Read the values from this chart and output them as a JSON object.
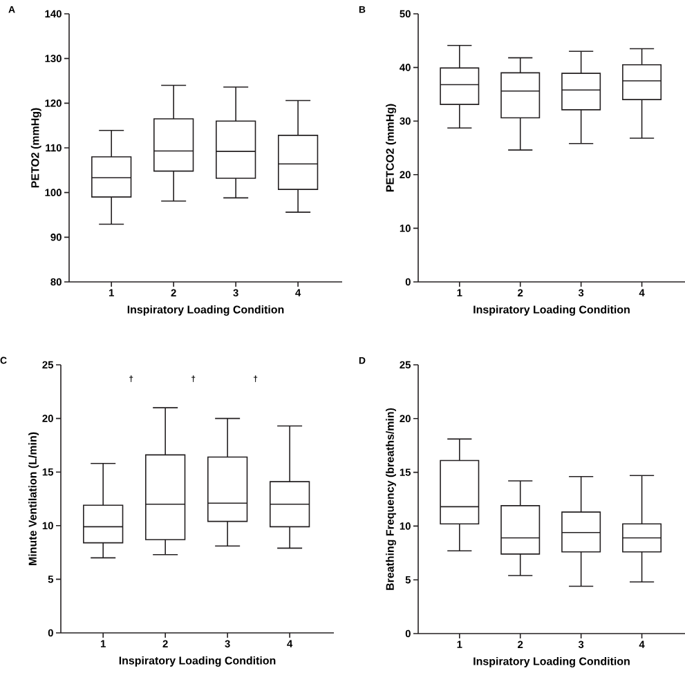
{
  "chart_data": [
    {
      "type": "box",
      "title": "A",
      "xlabel": "Inspiratory Loading Condition",
      "ylabel": "PETO2 (mmHg)",
      "categories": [
        "1",
        "2",
        "3",
        "4"
      ],
      "ylim": [
        80,
        140
      ],
      "yticks": [
        80,
        90,
        100,
        110,
        120,
        130,
        140
      ],
      "color": "#231f20",
      "boxes": [
        {
          "low": 92.9,
          "q1": 99.0,
          "median": 103.3,
          "q3": 108.0,
          "high": 113.9
        },
        {
          "low": 98.1,
          "q1": 104.8,
          "median": 109.3,
          "q3": 116.5,
          "high": 124.0
        },
        {
          "low": 98.8,
          "q1": 103.2,
          "median": 109.2,
          "q3": 116.0,
          "high": 123.6
        },
        {
          "low": 95.6,
          "q1": 100.7,
          "median": 106.4,
          "q3": 112.8,
          "high": 120.6
        }
      ]
    },
    {
      "type": "box",
      "title": "B",
      "xlabel": "Inspiratory Loading Condition",
      "ylabel": "PETCO2 (mmHg)",
      "categories": [
        "1",
        "2",
        "3",
        "4"
      ],
      "ylim": [
        0,
        50
      ],
      "yticks": [
        0,
        10,
        20,
        30,
        40,
        50
      ],
      "color": "#231f20",
      "boxes": [
        {
          "low": 28.7,
          "q1": 33.1,
          "median": 36.8,
          "q3": 39.9,
          "high": 44.1
        },
        {
          "low": 24.6,
          "q1": 30.6,
          "median": 35.6,
          "q3": 39.0,
          "high": 41.8
        },
        {
          "low": 25.8,
          "q1": 32.1,
          "median": 35.8,
          "q3": 38.9,
          "high": 43.0
        },
        {
          "low": 26.8,
          "q1": 34.0,
          "median": 37.5,
          "q3": 40.5,
          "high": 43.5
        }
      ]
    },
    {
      "type": "box",
      "title": "C",
      "xlabel": "Inspiratory Loading Condition",
      "ylabel": "Minute Ventilation (L/min)",
      "categories": [
        "1",
        "2",
        "3",
        "4"
      ],
      "ylim": [
        0,
        25
      ],
      "yticks": [
        0,
        5,
        10,
        15,
        20,
        25
      ],
      "color": "#231f20",
      "annotations": [
        "†",
        "†",
        "†"
      ],
      "boxes": [
        {
          "low": 7.0,
          "q1": 8.4,
          "median": 9.9,
          "q3": 11.9,
          "high": 15.8
        },
        {
          "low": 7.3,
          "q1": 8.7,
          "median": 12.0,
          "q3": 16.6,
          "high": 21.0
        },
        {
          "low": 8.1,
          "q1": 10.4,
          "median": 12.1,
          "q3": 16.4,
          "high": 20.0
        },
        {
          "low": 7.9,
          "q1": 9.9,
          "median": 12.0,
          "q3": 14.1,
          "high": 19.3
        }
      ]
    },
    {
      "type": "box",
      "title": "D",
      "xlabel": "Inspiratory Loading Condition",
      "ylabel": "Breathing Frequency (breaths/min)",
      "categories": [
        "1",
        "2",
        "3",
        "4"
      ],
      "ylim": [
        0,
        25
      ],
      "yticks": [
        0,
        5,
        10,
        15,
        20,
        25
      ],
      "color": "#231f20",
      "boxes": [
        {
          "low": 7.7,
          "q1": 10.2,
          "median": 11.8,
          "q3": 16.1,
          "high": 18.1
        },
        {
          "low": 5.4,
          "q1": 7.4,
          "median": 8.9,
          "q3": 11.9,
          "high": 14.2
        },
        {
          "low": 4.4,
          "q1": 7.6,
          "median": 9.4,
          "q3": 11.3,
          "high": 14.6
        },
        {
          "low": 4.8,
          "q1": 7.6,
          "median": 8.9,
          "q3": 10.2,
          "high": 14.7
        }
      ]
    }
  ]
}
